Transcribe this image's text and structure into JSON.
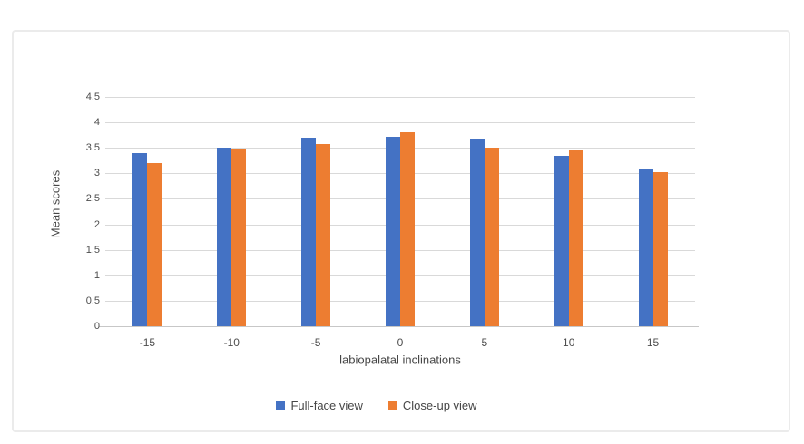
{
  "chart_data": {
    "type": "bar",
    "title": "",
    "categories": [
      "-15",
      "-10",
      "-5",
      "0",
      "5",
      "10",
      "15"
    ],
    "series": [
      {
        "name": "Full-face view",
        "color": "#4472C4",
        "values": [
          3.4,
          3.51,
          3.7,
          3.71,
          3.68,
          3.35,
          3.08
        ]
      },
      {
        "name": "Close-up view",
        "color": "#ED7D31",
        "values": [
          3.2,
          3.48,
          3.57,
          3.8,
          3.5,
          3.47,
          3.02
        ]
      }
    ],
    "xlabel": "labiopalatal inclinations",
    "ylabel": "Mean scores",
    "ylim": [
      0,
      4.5
    ],
    "ystep": 0.5,
    "grid": true,
    "legend_position": "bottom",
    "gridline_color": "#d9d9d9",
    "axisline_color": "#c7c7c7",
    "tick_color": "#4d4d4d",
    "label_color": "#464646"
  },
  "frame": {
    "border_color": "#ebebeb",
    "background": "#ffffff"
  }
}
